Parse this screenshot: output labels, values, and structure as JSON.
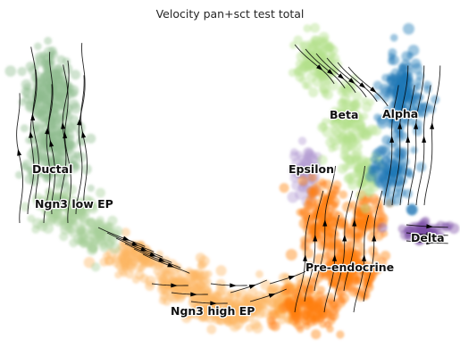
{
  "title": "Velocity pan+sct test total",
  "chart_data": {
    "type": "scatter",
    "kind": "umap embedding with RNA velocity streamlines",
    "title": "Velocity pan+sct test total",
    "xlabel": "",
    "ylabel": "",
    "axes_visible": false,
    "grid": false,
    "legend": "on data",
    "clusters": [
      {
        "name": "Ductal",
        "color": "#8fbc8f"
      },
      {
        "name": "Ngn3 low EP",
        "color": "#a8cf98"
      },
      {
        "name": "Ngn3 high EP",
        "color": "#fdb462"
      },
      {
        "name": "Pre-endocrine",
        "color": "#ff7f0e"
      },
      {
        "name": "Beta",
        "color": "#b2df8a"
      },
      {
        "name": "Alpha",
        "color": "#1f77b4"
      },
      {
        "name": "Delta",
        "color": "#7b4fa6"
      },
      {
        "name": "Epsilon",
        "color": "#b39bd1"
      }
    ]
  }
}
